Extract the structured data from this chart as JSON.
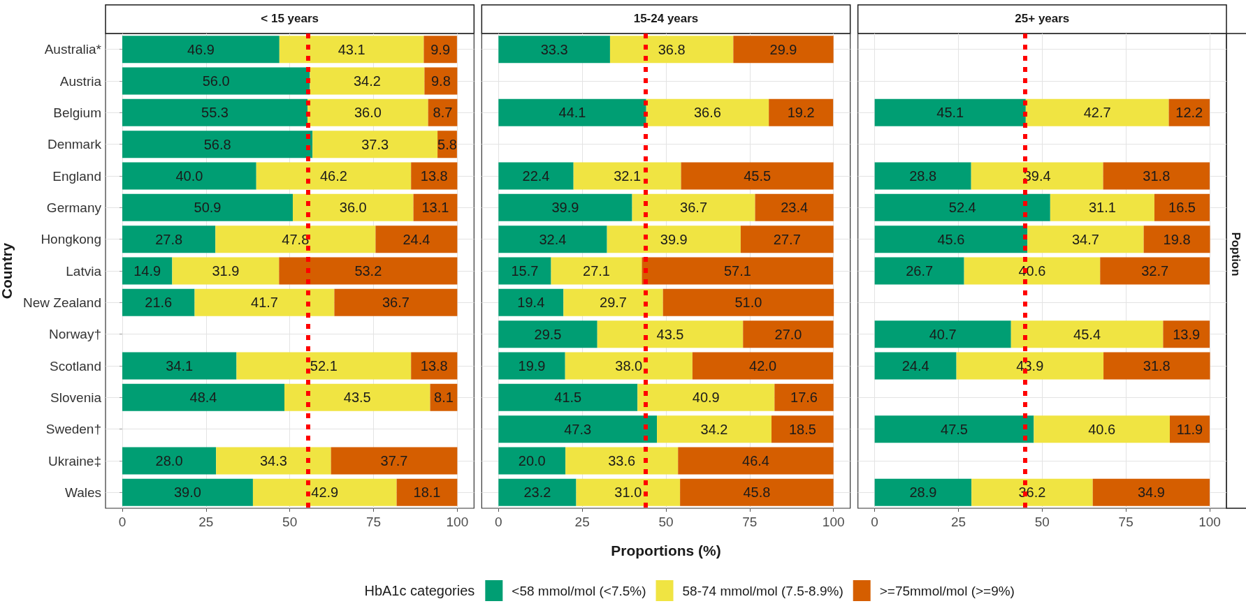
{
  "chart_data": [
    {
      "type": "bar",
      "orientation": "horizontal",
      "stacked": true,
      "title": "< 15 years",
      "ylabel": "Country",
      "categories": [
        "Australia*",
        "Austria",
        "Belgium",
        "Denmark",
        "England",
        "Germany",
        "Hongkong",
        "Latvia",
        "New Zealand",
        "Norway†",
        "Scotland",
        "Slovenia",
        "Sweden†",
        "Ukraine‡",
        "Wales"
      ],
      "series": [
        {
          "color": "#009e73",
          "values": [
            46.9,
            56.0,
            55.3,
            56.8,
            40.0,
            50.9,
            27.8,
            14.9,
            21.6,
            null,
            34.1,
            48.4,
            null,
            28.0,
            39.0
          ],
          "value_labels": [
            "46.9",
            "56.0",
            "55.3",
            "56.8",
            "40.0",
            "50.9",
            "27.8",
            "14.9",
            "21.6",
            null,
            "34.1",
            "48.4",
            null,
            "28.0",
            "39.0"
          ]
        },
        {
          "color": "#f0e442",
          "values": [
            43.1,
            34.2,
            36.0,
            37.3,
            46.2,
            36.0,
            47.8,
            31.9,
            41.7,
            null,
            52.1,
            43.5,
            null,
            34.3,
            42.9
          ],
          "value_labels": [
            "43.1",
            "34.2",
            "36.0",
            "37.3",
            "46.2",
            "36.0",
            "47.8",
            "31.9",
            "41.7",
            null,
            "52.1",
            "43.5",
            null,
            "34.3",
            "42.9"
          ]
        },
        {
          "color": "#d55e00",
          "values": [
            9.9,
            9.8,
            8.7,
            5.8,
            13.8,
            13.1,
            24.4,
            53.2,
            36.7,
            null,
            13.8,
            8.1,
            null,
            37.7,
            18.1
          ],
          "value_labels": [
            "9.9",
            "9.8",
            "8.7",
            "5.8",
            "13.8",
            "13.1",
            "24.4",
            "53.2",
            "36.7",
            null,
            "13.8",
            "8.1",
            null,
            "37.7",
            "18.1"
          ]
        }
      ],
      "xlim": [
        -5,
        105
      ],
      "xticks": [
        0,
        25,
        50,
        75,
        100
      ],
      "grid": true,
      "ref_lines": [
        {
          "axis": "x",
          "value": 55.4,
          "color": "#ff0000",
          "line_style": "dotted"
        }
      ]
    },
    {
      "type": "bar",
      "orientation": "horizontal",
      "stacked": true,
      "title": "15-24 years",
      "xlabel": "Proportions (%)",
      "categories": [
        null,
        null,
        null,
        null,
        null,
        null,
        null,
        null,
        null,
        null,
        null,
        null,
        null,
        null,
        null
      ],
      "series": [
        {
          "name": "<58 mmol/mol (<7.5%)",
          "color": "#009e73",
          "values": [
            33.3,
            null,
            44.1,
            null,
            22.4,
            39.9,
            32.4,
            15.7,
            19.4,
            29.5,
            19.9,
            41.5,
            47.3,
            20.0,
            23.2
          ],
          "value_labels": [
            "33.3",
            null,
            "44.1",
            null,
            "22.4",
            "39.9",
            "32.4",
            "15.7",
            "19.4",
            "29.5",
            "19.9",
            "41.5",
            "47.3",
            "20.0",
            "23.2"
          ]
        },
        {
          "name": "58-74 mmol/mol (7.5-8.9%)",
          "color": "#f0e442",
          "values": [
            36.8,
            null,
            36.6,
            null,
            32.1,
            36.7,
            39.9,
            27.1,
            29.7,
            43.5,
            38.0,
            40.9,
            34.2,
            33.6,
            31.0
          ],
          "value_labels": [
            "36.8",
            null,
            "36.6",
            null,
            "32.1",
            "36.7",
            "39.9",
            "27.1",
            "29.7",
            "43.5",
            "38.0",
            "40.9",
            "34.2",
            "33.6",
            "31.0"
          ]
        },
        {
          "name": ">=75mmol/mol (>=9%)",
          "color": "#d55e00",
          "values": [
            29.9,
            null,
            19.2,
            null,
            45.5,
            23.4,
            27.7,
            57.1,
            51.0,
            27.0,
            42.0,
            17.6,
            18.5,
            46.4,
            45.8
          ],
          "value_labels": [
            "29.9",
            null,
            "19.2",
            null,
            "45.5",
            "23.4",
            "27.7",
            "57.1",
            "51.0",
            "27.0",
            "42.0",
            "17.6",
            "18.5",
            "46.4",
            "45.8"
          ]
        }
      ],
      "xlim": [
        -5,
        105
      ],
      "xticks": [
        0,
        25,
        50,
        75,
        100
      ],
      "grid": true,
      "tick_labels": "x",
      "ref_lines": [
        {
          "axis": "x",
          "value": 44.0,
          "color": "#ff0000",
          "line_style": "dotted"
        }
      ],
      "legend": "bottom",
      "legend_title": "HbA1c categories"
    },
    {
      "type": "bar",
      "orientation": "horizontal",
      "stacked": true,
      "title": "25+ years",
      "categories": [
        null,
        null,
        null,
        null,
        null,
        null,
        null,
        null,
        null,
        null,
        null,
        null,
        null,
        null,
        null
      ],
      "series": [
        {
          "color": "#009e73",
          "values": [
            null,
            null,
            45.1,
            null,
            28.8,
            52.4,
            45.6,
            26.7,
            null,
            40.7,
            24.4,
            null,
            47.5,
            null,
            28.9
          ],
          "value_labels": [
            null,
            null,
            "45.1",
            null,
            "28.8",
            "52.4",
            "45.6",
            "26.7",
            null,
            "40.7",
            "24.4",
            null,
            "47.5",
            null,
            "28.9"
          ]
        },
        {
          "color": "#f0e442",
          "values": [
            null,
            null,
            42.7,
            null,
            39.4,
            31.1,
            34.7,
            40.6,
            null,
            45.4,
            43.9,
            null,
            40.6,
            null,
            36.2
          ],
          "value_labels": [
            null,
            null,
            "42.7",
            null,
            "39.4",
            "31.1",
            "34.7",
            "40.6",
            null,
            "45.4",
            "43.9",
            null,
            "40.6",
            null,
            "36.2"
          ]
        },
        {
          "color": "#d55e00",
          "values": [
            null,
            null,
            12.2,
            null,
            31.8,
            16.5,
            19.8,
            32.7,
            null,
            13.9,
            31.8,
            null,
            11.9,
            null,
            34.9
          ],
          "value_labels": [
            null,
            null,
            "12.2",
            null,
            "31.8",
            "16.5",
            "19.8",
            "32.7",
            null,
            "13.9",
            "31.8",
            null,
            "11.9",
            null,
            "34.9"
          ]
        }
      ],
      "xlim": [
        -5,
        105
      ],
      "xticks": [
        0,
        25,
        50,
        75,
        100
      ],
      "grid": true,
      "tick_labels": "x",
      "ref_lines": [
        {
          "axis": "x",
          "value": 44.9,
          "color": "#ff0000",
          "line_style": "dotted"
        }
      ],
      "annotations": [
        "Poption"
      ]
    }
  ]
}
